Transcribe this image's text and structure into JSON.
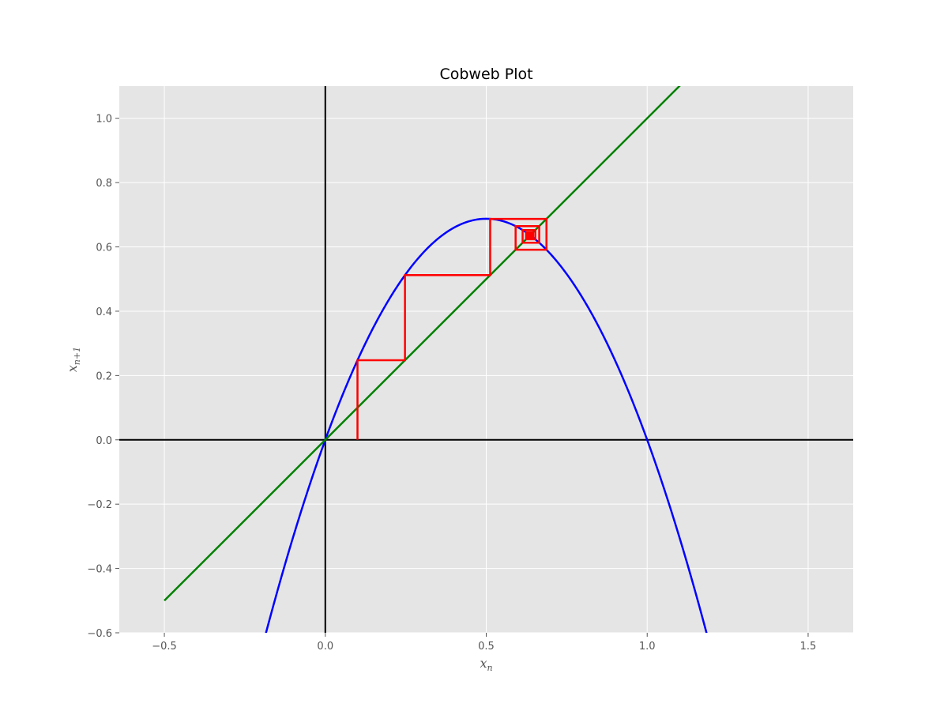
{
  "chart_data": {
    "type": "line",
    "title": "Cobweb Plot",
    "xlabel": "x_n",
    "ylabel": "x_{n+1}",
    "xlim": [
      -0.64,
      1.64
    ],
    "ylim": [
      -0.6,
      1.1
    ],
    "xticks": [
      -0.5,
      0.0,
      0.5,
      1.0,
      1.5
    ],
    "xtick_labels": [
      "−0.5",
      "0.0",
      "0.5",
      "1.0",
      "1.5"
    ],
    "yticks": [
      -0.6,
      -0.4,
      -0.2,
      0.0,
      0.2,
      0.4,
      0.6,
      0.8,
      1.0
    ],
    "ytick_labels": [
      "−0.6",
      "−0.4",
      "−0.2",
      "0.0",
      "0.2",
      "0.4",
      "0.6",
      "0.8",
      "1.0"
    ],
    "grid": true,
    "background": "#e5e5e5",
    "series": [
      {
        "kind": "logistic-map",
        "r": 2.75,
        "x_range": [
          -0.19,
          1.19
        ],
        "color": "#0000ff"
      },
      {
        "kind": "identity",
        "x_range": [
          -0.5,
          1.5
        ],
        "color": "#008000"
      },
      {
        "kind": "cobweb",
        "r": 2.75,
        "x0": 0.1,
        "iterations": 30,
        "color": "#ff0000"
      }
    ],
    "reference_lines": [
      {
        "kind": "horizontal",
        "y": 0.0,
        "color": "#000000"
      },
      {
        "kind": "vertical",
        "x": 0.0,
        "color": "#000000"
      }
    ]
  }
}
